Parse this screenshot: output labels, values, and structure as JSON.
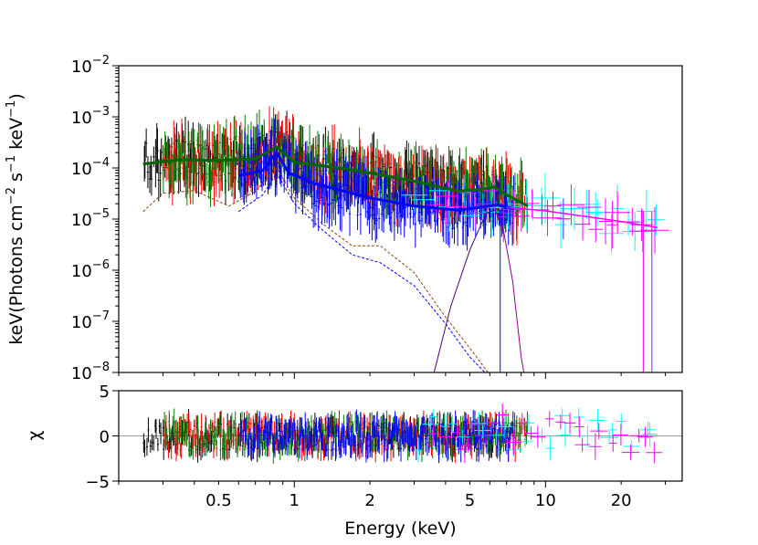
{
  "chart_data": {
    "type": "scatter",
    "title": "",
    "xlabel": "Energy (keV)",
    "x_scale": "log",
    "xlim": [
      0.2,
      35
    ],
    "x_ticks": [
      {
        "value": 0.5,
        "label": "0.5"
      },
      {
        "value": 1,
        "label": "1"
      },
      {
        "value": 2,
        "label": "2"
      },
      {
        "value": 5,
        "label": "5"
      },
      {
        "value": 10,
        "label": "10"
      },
      {
        "value": 20,
        "label": "20"
      }
    ],
    "panels": [
      {
        "name": "spectrum",
        "ylabel_base": "keV(Photons cm",
        "ylabel_sup1": "−2",
        "ylabel_mid": " s",
        "ylabel_sup2": "−1",
        "ylabel_mid2": " keV",
        "ylabel_sup3": "−1",
        "ylabel_end": ")",
        "y_scale": "log",
        "ylim": [
          1e-08,
          0.01
        ],
        "y_ticks": [
          {
            "value": 1e-08,
            "base": "10",
            "exp": "−8"
          },
          {
            "value": 1e-07,
            "base": "10",
            "exp": "−7"
          },
          {
            "value": 1e-06,
            "base": "10",
            "exp": "−6"
          },
          {
            "value": 1e-05,
            "base": "10",
            "exp": "−5"
          },
          {
            "value": 0.0001,
            "base": "10",
            "exp": "−4"
          },
          {
            "value": 0.001,
            "base": "10",
            "exp": "−3"
          },
          {
            "value": 0.01,
            "base": "10",
            "exp": "−2"
          }
        ],
        "series": [
          {
            "name": "data-black",
            "color": "#000000",
            "x_range": [
              0.25,
              7.0
            ],
            "level_points": [
              [
                0.25,
                0.00012
              ],
              [
                0.4,
                0.00014
              ],
              [
                0.6,
                0.00013
              ],
              [
                0.85,
                0.00025
              ],
              [
                1.2,
                0.00011
              ],
              [
                2,
                7e-05
              ],
              [
                4,
                4e-05
              ],
              [
                6,
                3.5e-05
              ],
              [
                7,
                2e-05
              ]
            ]
          },
          {
            "name": "data-red",
            "color": "#ff0000",
            "x_range": [
              0.3,
              8.5
            ],
            "level_points": [
              [
                0.3,
                0.00013
              ],
              [
                0.5,
                0.000135
              ],
              [
                0.85,
                0.00025
              ],
              [
                1.2,
                0.00011
              ],
              [
                2,
                7e-05
              ],
              [
                4,
                4e-05
              ],
              [
                6,
                4e-05
              ],
              [
                8.5,
                1.8e-05
              ]
            ]
          },
          {
            "name": "data-green",
            "color": "#008000",
            "x_range": [
              0.3,
              8.5
            ],
            "level_points": [
              [
                0.3,
                0.00013
              ],
              [
                0.5,
                0.000135
              ],
              [
                0.85,
                0.00025
              ],
              [
                1.2,
                0.00011
              ],
              [
                2,
                7e-05
              ],
              [
                4,
                4e-05
              ],
              [
                6,
                4.2e-05
              ],
              [
                8.5,
                1.8e-05
              ]
            ]
          },
          {
            "name": "data-blue",
            "color": "#0000ff",
            "x_range": [
              0.6,
              7.5
            ],
            "level_points": [
              [
                0.6,
                7e-05
              ],
              [
                0.85,
                0.0002
              ],
              [
                1.0,
                6e-05
              ],
              [
                2,
                2.5e-05
              ],
              [
                4,
                1.6e-05
              ],
              [
                6,
                1.8e-05
              ],
              [
                7.5,
                1.6e-05
              ]
            ]
          },
          {
            "name": "data-cyan",
            "color": "#00ffff",
            "x_range": [
              3.0,
              28
            ],
            "level_points": [
              [
                3,
                3e-05
              ],
              [
                6,
                2e-05
              ],
              [
                10,
                1.5e-05
              ],
              [
                20,
                9e-06
              ],
              [
                28,
                7e-06
              ]
            ]
          },
          {
            "name": "data-magenta",
            "color": "#ff00ff",
            "x_range": [
              3.5,
              28
            ],
            "level_points": [
              [
                3.5,
                3e-05
              ],
              [
                6,
                2.2e-05
              ],
              [
                10,
                1.5e-05
              ],
              [
                20,
                9e-06
              ],
              [
                28,
                7e-06
              ]
            ]
          }
        ],
        "model_lines": [
          {
            "name": "model-total-dark",
            "color": "#006400",
            "width": 3,
            "points": [
              [
                0.25,
                0.00012
              ],
              [
                0.35,
                0.000145
              ],
              [
                0.5,
                0.00014
              ],
              [
                0.7,
                0.00015
              ],
              [
                0.85,
                0.00026
              ],
              [
                1.0,
                0.00013
              ],
              [
                1.5,
                0.0001
              ],
              [
                2,
                8e-05
              ],
              [
                3,
                5.5e-05
              ],
              [
                4.5,
                3.5e-05
              ],
              [
                5.5,
                3.8e-05
              ],
              [
                6.3,
                4.2e-05
              ],
              [
                7,
                3e-05
              ],
              [
                8.5,
                1.8e-05
              ]
            ]
          },
          {
            "name": "model-total-blue",
            "color": "#0000ff",
            "width": 3,
            "points": [
              [
                0.6,
                7e-05
              ],
              [
                0.75,
                9e-05
              ],
              [
                0.85,
                0.0002
              ],
              [
                0.95,
                8e-05
              ],
              [
                1.2,
                5e-05
              ],
              [
                2,
                2.6e-05
              ],
              [
                3,
                1.8e-05
              ],
              [
                4.5,
                1.5e-05
              ],
              [
                5.5,
                1.7e-05
              ],
              [
                6.4,
                1.9e-05
              ],
              [
                7.5,
                1.6e-05
              ]
            ]
          },
          {
            "name": "model-powerlaw",
            "color": "#ff00ff",
            "width": 1.5,
            "points": [
              [
                7,
                1.7e-05
              ],
              [
                10,
                1.45e-05
              ],
              [
                15,
                1.1e-05
              ],
              [
                20,
                9e-06
              ],
              [
                28,
                6.8e-06
              ]
            ]
          },
          {
            "name": "component-thermal-red",
            "color": "#8b4513",
            "width": 1,
            "dashed": true,
            "points": [
              [
                0.25,
                1.4e-05
              ],
              [
                0.3,
                3.2e-05
              ],
              [
                0.4,
                3.6e-05
              ],
              [
                0.55,
                1.8e-05
              ],
              [
                0.7,
                3.5e-05
              ],
              [
                0.85,
                0.0001
              ],
              [
                1.0,
                2.6e-05
              ],
              [
                1.3,
                8e-06
              ],
              [
                1.7,
                3e-06
              ],
              [
                2.2,
                3e-06
              ],
              [
                3,
                9e-07
              ],
              [
                4,
                1.2e-07
              ],
              [
                5,
                3e-08
              ],
              [
                6,
                9e-09
              ]
            ]
          },
          {
            "name": "component-thermal-blue",
            "color": "#0000ff",
            "width": 1,
            "dashed": true,
            "points": [
              [
                0.6,
                1.4e-05
              ],
              [
                0.75,
                3e-05
              ],
              [
                0.85,
                8e-05
              ],
              [
                1.0,
                2e-05
              ],
              [
                1.3,
                6e-06
              ],
              [
                1.7,
                2e-06
              ],
              [
                2.2,
                1.4e-06
              ],
              [
                3,
                5e-07
              ],
              [
                4,
                9e-08
              ],
              [
                5,
                2e-08
              ],
              [
                6,
                8e-09
              ]
            ]
          },
          {
            "name": "component-line-rise",
            "color": "#4b0082",
            "width": 1,
            "points": [
              [
                3.6,
                1e-08
              ],
              [
                4.2,
                2e-07
              ],
              [
                5.0,
                2.5e-06
              ],
              [
                5.8,
                1.3e-05
              ],
              [
                6.3,
                1.5e-05
              ]
            ]
          },
          {
            "name": "component-line-fall",
            "color": "#8b008b",
            "width": 1,
            "points": [
              [
                6.3,
                1.5e-05
              ],
              [
                6.8,
                6e-06
              ],
              [
                7.4,
                6e-07
              ],
              [
                8,
                2e-08
              ],
              [
                8.2,
                1e-08
              ]
            ]
          },
          {
            "name": "component-line-spike",
            "color": "#0000ff",
            "width": 1,
            "points": [
              [
                6.6,
                1e-08
              ],
              [
                6.6,
                1.5e-05
              ]
            ]
          }
        ]
      },
      {
        "name": "residuals",
        "ylabel": "χ",
        "y_scale": "linear",
        "ylim": [
          -5,
          5
        ],
        "y_ticks": [
          {
            "value": -5,
            "label": "−5"
          },
          {
            "value": 0,
            "label": "0"
          },
          {
            "value": 5,
            "label": "5"
          }
        ],
        "reference_line": 0,
        "series": [
          {
            "name": "resid-black",
            "color": "#000000",
            "x_range": [
              0.25,
              7.0
            ]
          },
          {
            "name": "resid-red",
            "color": "#ff0000",
            "x_range": [
              0.3,
              8.5
            ]
          },
          {
            "name": "resid-green",
            "color": "#008000",
            "x_range": [
              0.3,
              8.5
            ]
          },
          {
            "name": "resid-blue",
            "color": "#0000ff",
            "x_range": [
              0.6,
              7.5
            ]
          },
          {
            "name": "resid-cyan",
            "color": "#00ffff",
            "x_range": [
              3.0,
              28
            ]
          },
          {
            "name": "resid-magenta",
            "color": "#ff00ff",
            "x_range": [
              3.5,
              28
            ]
          }
        ]
      }
    ]
  }
}
